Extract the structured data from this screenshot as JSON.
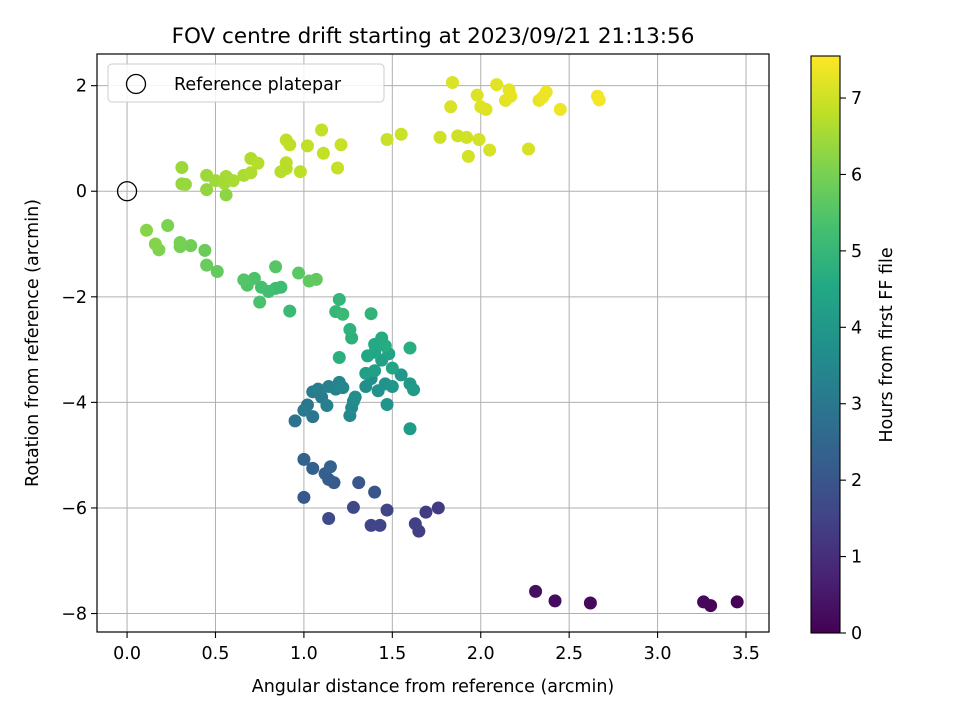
{
  "chart_data": {
    "type": "scatter",
    "title": "FOV centre drift starting at 2023/09/21 21:13:56",
    "xlabel": "Angular distance from reference (arcmin)",
    "ylabel": "Rotation from reference (arcmin)",
    "xlim": [
      -0.17,
      3.63
    ],
    "ylim": [
      -8.35,
      2.6
    ],
    "xticks": [
      0.0,
      0.5,
      1.0,
      1.5,
      2.0,
      2.5,
      3.0,
      3.5
    ],
    "xtick_labels": [
      "0.0",
      "0.5",
      "1.0",
      "1.5",
      "2.0",
      "2.5",
      "3.0",
      "3.5"
    ],
    "yticks": [
      -8,
      -6,
      -4,
      -2,
      0,
      2
    ],
    "ytick_labels": [
      "−8",
      "−6",
      "−4",
      "−2",
      "0",
      "2"
    ],
    "grid": true,
    "legend": {
      "placement": "top-left",
      "entries": [
        {
          "label": "Reference platepar",
          "marker": "open-circle"
        }
      ]
    },
    "reference_point": {
      "x": 0.0,
      "y": 0.0
    },
    "colorbar": {
      "label": "Hours from first FF file",
      "colormap": "viridis",
      "range": [
        0,
        7.55
      ],
      "ticks": [
        0,
        1,
        2,
        3,
        4,
        5,
        6,
        7
      ],
      "tick_labels": [
        "0",
        "1",
        "2",
        "3",
        "4",
        "5",
        "6",
        "7"
      ]
    },
    "points": [
      {
        "x": 3.45,
        "y": -7.78,
        "t": 0.05
      },
      {
        "x": 3.3,
        "y": -7.85,
        "t": 0.1
      },
      {
        "x": 3.26,
        "y": -7.78,
        "t": 0.15
      },
      {
        "x": 2.62,
        "y": -7.8,
        "t": 0.2
      },
      {
        "x": 2.42,
        "y": -7.76,
        "t": 0.25
      },
      {
        "x": 2.31,
        "y": -7.58,
        "t": 0.3
      },
      {
        "x": 1.76,
        "y": -6.0,
        "t": 1.3
      },
      {
        "x": 1.69,
        "y": -6.08,
        "t": 1.35
      },
      {
        "x": 1.65,
        "y": -6.44,
        "t": 1.4
      },
      {
        "x": 1.63,
        "y": -6.3,
        "t": 1.45
      },
      {
        "x": 1.47,
        "y": -6.04,
        "t": 1.5
      },
      {
        "x": 1.43,
        "y": -6.33,
        "t": 1.55
      },
      {
        "x": 1.38,
        "y": -6.33,
        "t": 1.6
      },
      {
        "x": 1.28,
        "y": -5.99,
        "t": 1.65
      },
      {
        "x": 1.14,
        "y": -6.2,
        "t": 1.7
      },
      {
        "x": 1.4,
        "y": -5.7,
        "t": 2.0
      },
      {
        "x": 1.31,
        "y": -5.52,
        "t": 2.05
      },
      {
        "x": 1.0,
        "y": -5.8,
        "t": 2.1
      },
      {
        "x": 1.17,
        "y": -5.52,
        "t": 2.15
      },
      {
        "x": 1.14,
        "y": -5.46,
        "t": 2.2
      },
      {
        "x": 1.12,
        "y": -5.35,
        "t": 2.25
      },
      {
        "x": 1.05,
        "y": -5.25,
        "t": 2.3
      },
      {
        "x": 1.15,
        "y": -5.22,
        "t": 2.35
      },
      {
        "x": 1.0,
        "y": -5.08,
        "t": 2.4
      },
      {
        "x": 0.95,
        "y": -4.35,
        "t": 2.9
      },
      {
        "x": 1.05,
        "y": -4.27,
        "t": 2.95
      },
      {
        "x": 1.02,
        "y": -4.05,
        "t": 3.0
      },
      {
        "x": 1.0,
        "y": -4.15,
        "t": 3.05
      },
      {
        "x": 1.1,
        "y": -3.9,
        "t": 3.1
      },
      {
        "x": 1.05,
        "y": -3.8,
        "t": 3.15
      },
      {
        "x": 1.08,
        "y": -3.75,
        "t": 3.2
      },
      {
        "x": 1.14,
        "y": -3.7,
        "t": 3.25
      },
      {
        "x": 1.13,
        "y": -4.06,
        "t": 3.3
      },
      {
        "x": 1.18,
        "y": -3.75,
        "t": 3.35
      },
      {
        "x": 1.2,
        "y": -3.62,
        "t": 3.4
      },
      {
        "x": 1.22,
        "y": -3.72,
        "t": 3.45
      },
      {
        "x": 1.26,
        "y": -4.25,
        "t": 3.5
      },
      {
        "x": 1.27,
        "y": -4.1,
        "t": 3.55
      },
      {
        "x": 1.28,
        "y": -3.98,
        "t": 3.6
      },
      {
        "x": 1.29,
        "y": -3.9,
        "t": 3.65
      },
      {
        "x": 1.35,
        "y": -3.7,
        "t": 3.7
      },
      {
        "x": 1.38,
        "y": -3.55,
        "t": 3.75
      },
      {
        "x": 1.42,
        "y": -3.78,
        "t": 3.8
      },
      {
        "x": 1.46,
        "y": -3.65,
        "t": 3.85
      },
      {
        "x": 1.47,
        "y": -4.04,
        "t": 3.9
      },
      {
        "x": 1.5,
        "y": -3.7,
        "t": 3.95
      },
      {
        "x": 1.55,
        "y": -3.48,
        "t": 4.0
      },
      {
        "x": 1.6,
        "y": -3.65,
        "t": 4.05
      },
      {
        "x": 1.62,
        "y": -3.76,
        "t": 4.1
      },
      {
        "x": 1.6,
        "y": -4.5,
        "t": 4.15
      },
      {
        "x": 1.35,
        "y": -3.45,
        "t": 4.2
      },
      {
        "x": 1.4,
        "y": -3.4,
        "t": 4.25
      },
      {
        "x": 1.44,
        "y": -3.2,
        "t": 4.3
      },
      {
        "x": 1.48,
        "y": -3.08,
        "t": 4.35
      },
      {
        "x": 1.5,
        "y": -3.35,
        "t": 4.4
      },
      {
        "x": 1.4,
        "y": -3.05,
        "t": 4.45
      },
      {
        "x": 1.36,
        "y": -3.12,
        "t": 4.5
      },
      {
        "x": 1.4,
        "y": -2.9,
        "t": 4.55
      },
      {
        "x": 1.44,
        "y": -2.78,
        "t": 4.6
      },
      {
        "x": 1.46,
        "y": -2.93,
        "t": 4.65
      },
      {
        "x": 1.6,
        "y": -2.97,
        "t": 4.7
      },
      {
        "x": 1.2,
        "y": -3.15,
        "t": 4.75
      },
      {
        "x": 1.27,
        "y": -2.78,
        "t": 4.8
      },
      {
        "x": 1.26,
        "y": -2.62,
        "t": 4.85
      },
      {
        "x": 1.38,
        "y": -2.32,
        "t": 4.9
      },
      {
        "x": 1.2,
        "y": -2.05,
        "t": 4.95
      },
      {
        "x": 1.18,
        "y": -2.28,
        "t": 5.0
      },
      {
        "x": 1.22,
        "y": -2.33,
        "t": 5.05
      },
      {
        "x": 0.92,
        "y": -2.27,
        "t": 5.1
      },
      {
        "x": 0.87,
        "y": -1.82,
        "t": 5.15
      },
      {
        "x": 0.84,
        "y": -1.84,
        "t": 5.2
      },
      {
        "x": 0.8,
        "y": -1.9,
        "t": 5.25
      },
      {
        "x": 0.76,
        "y": -1.82,
        "t": 5.3
      },
      {
        "x": 0.75,
        "y": -2.1,
        "t": 5.35
      },
      {
        "x": 0.72,
        "y": -1.65,
        "t": 5.4
      },
      {
        "x": 0.68,
        "y": -1.78,
        "t": 5.45
      },
      {
        "x": 0.66,
        "y": -1.68,
        "t": 5.5
      },
      {
        "x": 0.84,
        "y": -1.43,
        "t": 5.55
      },
      {
        "x": 0.97,
        "y": -1.55,
        "t": 5.6
      },
      {
        "x": 1.03,
        "y": -1.7,
        "t": 5.65
      },
      {
        "x": 1.07,
        "y": -1.67,
        "t": 5.7
      },
      {
        "x": 0.51,
        "y": -1.52,
        "t": 5.75
      },
      {
        "x": 0.45,
        "y": -1.4,
        "t": 5.8
      },
      {
        "x": 0.44,
        "y": -1.12,
        "t": 5.85
      },
      {
        "x": 0.36,
        "y": -1.03,
        "t": 5.9
      },
      {
        "x": 0.3,
        "y": -1.05,
        "t": 5.95
      },
      {
        "x": 0.3,
        "y": -0.97,
        "t": 6.0
      },
      {
        "x": 0.23,
        "y": -0.65,
        "t": 6.05
      },
      {
        "x": 0.18,
        "y": -1.11,
        "t": 6.1
      },
      {
        "x": 0.16,
        "y": -1.0,
        "t": 6.15
      },
      {
        "x": 0.11,
        "y": -0.74,
        "t": 6.2
      },
      {
        "x": 0.56,
        "y": -0.07,
        "t": 6.25
      },
      {
        "x": 0.45,
        "y": 0.03,
        "t": 6.3
      },
      {
        "x": 0.31,
        "y": 0.14,
        "t": 6.35
      },
      {
        "x": 0.33,
        "y": 0.13,
        "t": 6.38
      },
      {
        "x": 0.31,
        "y": 0.45,
        "t": 6.4
      },
      {
        "x": 0.45,
        "y": 0.3,
        "t": 6.43
      },
      {
        "x": 0.5,
        "y": 0.2,
        "t": 6.46
      },
      {
        "x": 0.55,
        "y": 0.15,
        "t": 6.5
      },
      {
        "x": 0.56,
        "y": 0.28,
        "t": 6.53
      },
      {
        "x": 0.6,
        "y": 0.2,
        "t": 6.56
      },
      {
        "x": 0.66,
        "y": 0.3,
        "t": 6.6
      },
      {
        "x": 0.7,
        "y": 0.35,
        "t": 6.63
      },
      {
        "x": 0.7,
        "y": 0.62,
        "t": 6.66
      },
      {
        "x": 0.74,
        "y": 0.53,
        "t": 6.7
      },
      {
        "x": 0.87,
        "y": 0.37,
        "t": 6.72
      },
      {
        "x": 0.9,
        "y": 0.43,
        "t": 6.74
      },
      {
        "x": 0.9,
        "y": 0.54,
        "t": 6.76
      },
      {
        "x": 0.98,
        "y": 0.37,
        "t": 6.78
      },
      {
        "x": 0.9,
        "y": 0.97,
        "t": 6.8
      },
      {
        "x": 0.92,
        "y": 0.88,
        "t": 6.82
      },
      {
        "x": 1.02,
        "y": 0.86,
        "t": 6.84
      },
      {
        "x": 1.1,
        "y": 1.16,
        "t": 6.86
      },
      {
        "x": 1.11,
        "y": 0.72,
        "t": 6.88
      },
      {
        "x": 1.19,
        "y": 0.44,
        "t": 6.9
      },
      {
        "x": 1.21,
        "y": 0.88,
        "t": 6.92
      },
      {
        "x": 1.47,
        "y": 0.98,
        "t": 6.94
      },
      {
        "x": 1.55,
        "y": 1.08,
        "t": 6.96
      },
      {
        "x": 1.77,
        "y": 1.02,
        "t": 6.98
      },
      {
        "x": 1.87,
        "y": 1.05,
        "t": 7.0
      },
      {
        "x": 1.92,
        "y": 1.02,
        "t": 7.02
      },
      {
        "x": 1.93,
        "y": 0.66,
        "t": 7.04
      },
      {
        "x": 1.99,
        "y": 0.98,
        "t": 7.06
      },
      {
        "x": 2.05,
        "y": 0.78,
        "t": 7.08
      },
      {
        "x": 2.27,
        "y": 0.8,
        "t": 7.1
      },
      {
        "x": 1.83,
        "y": 1.6,
        "t": 7.12
      },
      {
        "x": 1.84,
        "y": 2.06,
        "t": 7.14
      },
      {
        "x": 1.98,
        "y": 1.82,
        "t": 7.16
      },
      {
        "x": 2.0,
        "y": 1.6,
        "t": 7.18
      },
      {
        "x": 2.03,
        "y": 1.55,
        "t": 7.2
      },
      {
        "x": 2.09,
        "y": 2.02,
        "t": 7.22
      },
      {
        "x": 2.14,
        "y": 1.72,
        "t": 7.24
      },
      {
        "x": 2.16,
        "y": 1.92,
        "t": 7.26
      },
      {
        "x": 2.17,
        "y": 1.8,
        "t": 7.28
      },
      {
        "x": 2.33,
        "y": 1.72,
        "t": 7.3
      },
      {
        "x": 2.35,
        "y": 1.78,
        "t": 7.32
      },
      {
        "x": 2.37,
        "y": 1.88,
        "t": 7.34
      },
      {
        "x": 2.45,
        "y": 1.55,
        "t": 7.36
      },
      {
        "x": 2.66,
        "y": 1.8,
        "t": 7.4
      },
      {
        "x": 2.67,
        "y": 1.73,
        "t": 7.42
      }
    ]
  }
}
